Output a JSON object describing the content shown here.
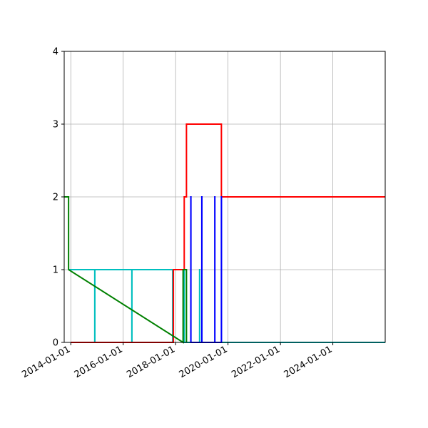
{
  "chart_data": {
    "type": "line",
    "title": "",
    "xlabel": "",
    "ylabel": "",
    "x_type": "date",
    "xlim": [
      "2013-10-01",
      "2025-12-31"
    ],
    "ylim": [
      0,
      4
    ],
    "grid": true,
    "x_ticks": [
      "2014-01-01",
      "2016-01-01",
      "2018-01-01",
      "2020-01-01",
      "2022-01-01",
      "2024-01-01"
    ],
    "y_ticks": [
      0,
      1,
      2,
      3,
      4
    ],
    "step": "post",
    "series": [
      {
        "color": "#00bfbf",
        "points": [
          [
            "2013-12-01",
            1
          ],
          [
            "2014-12-01",
            1
          ],
          [
            "2014-12-01",
            0
          ],
          [
            "2014-12-02",
            0
          ],
          [
            "2014-12-02",
            1
          ],
          [
            "2016-05-01",
            1
          ],
          [
            "2016-05-01",
            0
          ],
          [
            "2016-05-02",
            0
          ],
          [
            "2016-05-02",
            1
          ],
          [
            "2017-11-20",
            1
          ],
          [
            "2017-11-20",
            0
          ],
          [
            "2017-11-21",
            0
          ],
          [
            "2017-11-21",
            1
          ],
          [
            "2018-05-01",
            1
          ],
          [
            "2018-05-01",
            0
          ],
          [
            "2018-12-01",
            0
          ],
          [
            "2018-12-01",
            1
          ],
          [
            "2018-12-02",
            1
          ],
          [
            "2018-12-02",
            0
          ],
          [
            "2025-12-31",
            0
          ]
        ]
      },
      {
        "color": "#ff0000",
        "points": [
          [
            "2014-01-01",
            0
          ],
          [
            "2017-12-01",
            0
          ],
          [
            "2017-12-01",
            1
          ],
          [
            "2018-05-01",
            1
          ],
          [
            "2018-05-01",
            2
          ],
          [
            "2018-06-01",
            2
          ],
          [
            "2018-06-01",
            3
          ],
          [
            "2019-10-01",
            3
          ],
          [
            "2019-10-01",
            2
          ],
          [
            "2025-12-31",
            2
          ]
        ]
      },
      {
        "color": "#0000ff",
        "points": [
          [
            "2018-08-01",
            0
          ],
          [
            "2018-08-01",
            2
          ],
          [
            "2018-08-02",
            2
          ],
          [
            "2018-08-02",
            0
          ],
          [
            "2019-01-01",
            0
          ],
          [
            "2019-01-01",
            2
          ],
          [
            "2019-01-02",
            2
          ],
          [
            "2019-01-02",
            0
          ],
          [
            "2019-07-01",
            0
          ],
          [
            "2019-07-01",
            2
          ],
          [
            "2019-07-02",
            2
          ],
          [
            "2019-07-02",
            0
          ],
          [
            "2019-10-01",
            0
          ],
          [
            "2019-10-01",
            2
          ],
          [
            "2019-10-02",
            2
          ],
          [
            "2019-10-02",
            0
          ]
        ]
      },
      {
        "color": "#008000",
        "points": [
          [
            "2013-10-01",
            2
          ],
          [
            "2013-12-01",
            2
          ],
          [
            "2013-12-01",
            1
          ],
          [
            "2018-04-15",
            0
          ],
          [
            "2018-04-15",
            1
          ],
          [
            "2018-06-01",
            1
          ],
          [
            "2018-06-01",
            0
          ]
        ]
      }
    ]
  }
}
